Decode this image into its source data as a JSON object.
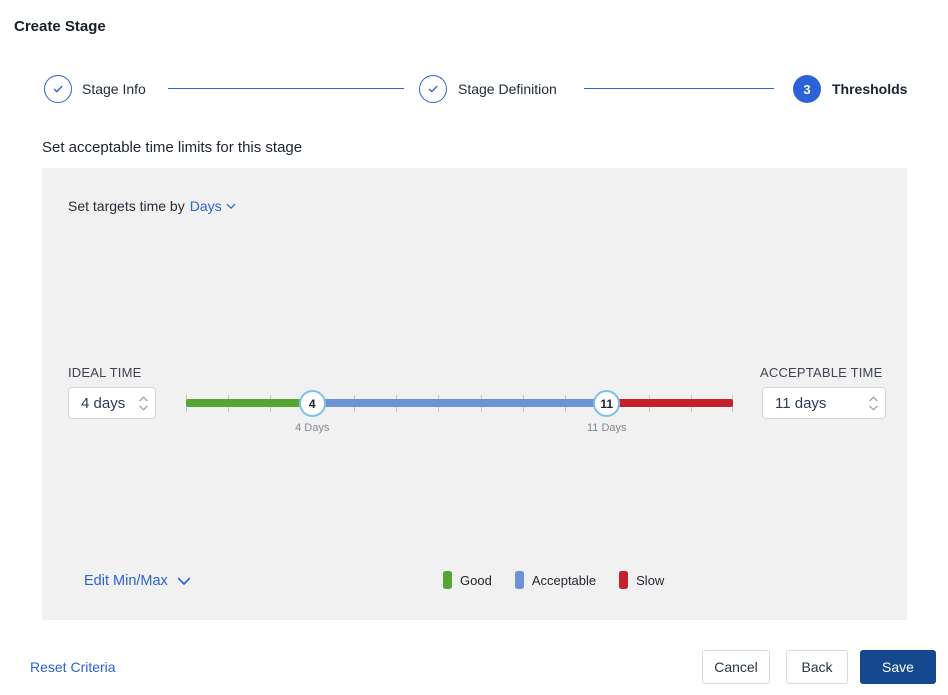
{
  "title": "Create Stage",
  "stepper": {
    "steps": [
      {
        "label": "Stage Info",
        "state": "complete"
      },
      {
        "label": "Stage Definition",
        "state": "complete"
      },
      {
        "label": "Thresholds",
        "state": "active",
        "number": "3"
      }
    ]
  },
  "section": {
    "heading": "Set acceptable time limits for this stage"
  },
  "panel": {
    "targets": {
      "prefix": "Set targets time by",
      "value": "Days"
    },
    "ideal": {
      "label": "IDEAL TIME",
      "value": "4 days"
    },
    "acceptable": {
      "label": "ACCEPTABLE TIME",
      "value": "11 days"
    },
    "slider": {
      "min": 1,
      "max": 14,
      "handles": [
        {
          "value": 4,
          "label": "4 Days"
        },
        {
          "value": 11,
          "label": "11 Days"
        }
      ],
      "segments": [
        {
          "name": "good",
          "from": 1,
          "to": 4,
          "color": "#56a632"
        },
        {
          "name": "acceptable",
          "from": 4,
          "to": 11,
          "color": "#6b93d6"
        },
        {
          "name": "slow",
          "from": 11,
          "to": 14,
          "color": "#c3222c"
        }
      ],
      "tick_color": "#c6c6c6",
      "handle_ring_color": "#7dc1ea"
    },
    "edit_minmax": {
      "label": "Edit Min/Max"
    },
    "legend": [
      {
        "label": "Good",
        "color": "#56a632"
      },
      {
        "label": "Acceptable",
        "color": "#6b93d6"
      },
      {
        "label": "Slow",
        "color": "#c3222c"
      }
    ]
  },
  "footer": {
    "reset": "Reset Criteria",
    "cancel": "Cancel",
    "back": "Back",
    "save": "Save"
  },
  "colors": {
    "accent": "#2b62d6",
    "save_bg": "#14498f",
    "panel_bg": "#f1f1f1"
  }
}
